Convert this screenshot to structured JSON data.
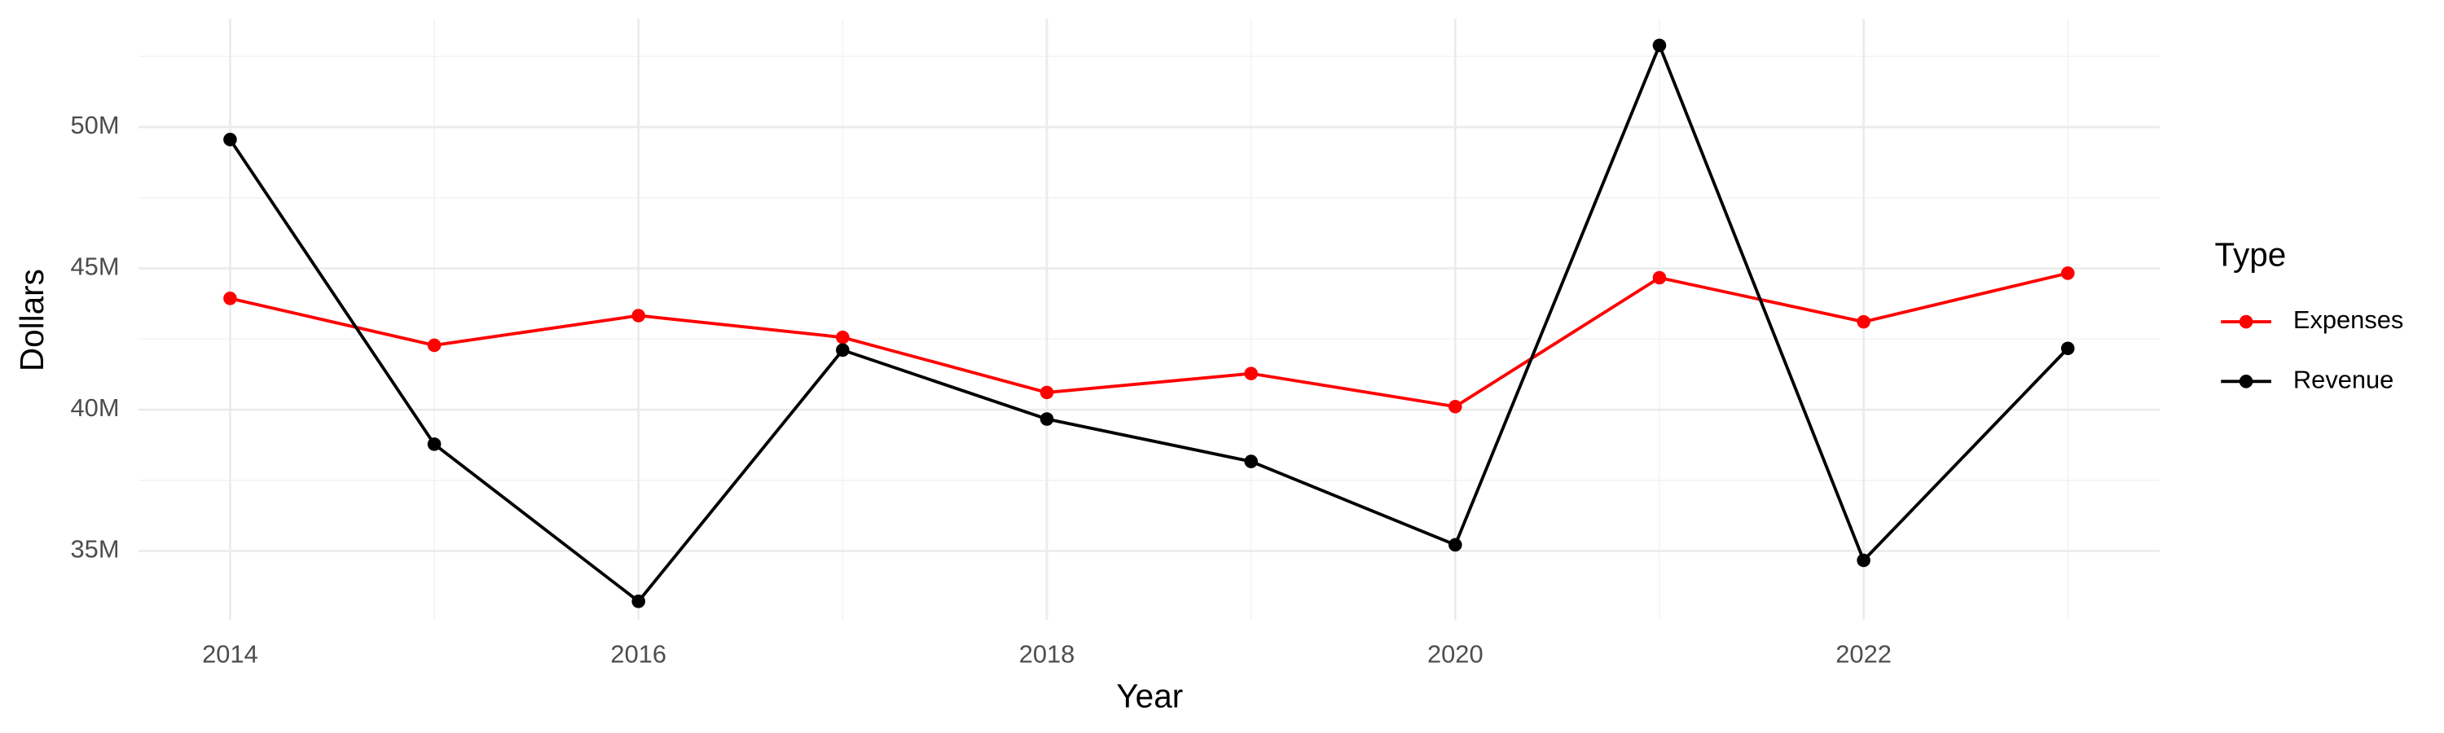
{
  "chart_data": {
    "type": "line",
    "x_label": "Year",
    "y_label": "Dollars",
    "legend_title": "Type",
    "legend_position": "right",
    "x": [
      2014,
      2015,
      2016,
      2017,
      2018,
      2019,
      2020,
      2021,
      2022,
      2023
    ],
    "series": [
      {
        "name": "Expenses",
        "color": "#ff0000",
        "values": [
          43940000,
          42280000,
          43330000,
          42560000,
          40610000,
          41280000,
          40110000,
          44670000,
          43110000,
          44830000
        ]
      },
      {
        "name": "Revenue",
        "color": "#000000",
        "values": [
          49560000,
          38780000,
          33220000,
          42110000,
          39670000,
          38170000,
          35220000,
          52890000,
          34670000,
          42170000
        ]
      }
    ],
    "xlim": [
      2013.55,
      2023.45
    ],
    "xticks": [
      2014,
      2016,
      2018,
      2020,
      2022
    ],
    "ylim": [
      32560000,
      53830000
    ],
    "yticks": [
      {
        "value": 35000000,
        "label": "35M"
      },
      {
        "value": 40000000,
        "label": "40M"
      },
      {
        "value": 45000000,
        "label": "45M"
      },
      {
        "value": 50000000,
        "label": "50M"
      }
    ],
    "grid": true
  }
}
